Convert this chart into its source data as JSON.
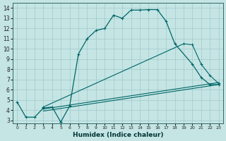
{
  "xlabel": "Humidex (Indice chaleur)",
  "bg_color": "#c5e5e5",
  "grid_color": "#a0c8c8",
  "line_color": "#006666",
  "xlim": [
    -0.5,
    23.5
  ],
  "ylim": [
    2.7,
    14.5
  ],
  "xticks": [
    0,
    1,
    2,
    3,
    4,
    5,
    6,
    7,
    8,
    9,
    10,
    11,
    12,
    13,
    14,
    15,
    16,
    17,
    18,
    19,
    20,
    21,
    22,
    23
  ],
  "yticks": [
    3,
    4,
    5,
    6,
    7,
    8,
    9,
    10,
    11,
    12,
    13,
    14
  ],
  "main_x": [
    0,
    1,
    2,
    3,
    4,
    5,
    5,
    6,
    7,
    8,
    9,
    10,
    11,
    12,
    13,
    14,
    15,
    16,
    17,
    18,
    20,
    21,
    22,
    23
  ],
  "main_y": [
    4.8,
    3.3,
    3.3,
    4.2,
    4.3,
    2.8,
    2.85,
    4.4,
    9.5,
    11.0,
    11.8,
    12.0,
    13.3,
    13.0,
    13.8,
    13.8,
    13.85,
    13.85,
    12.7,
    10.5,
    8.5,
    7.2,
    6.5,
    6.5
  ],
  "line2_x": [
    3,
    19,
    20,
    21,
    22,
    23
  ],
  "line2_y": [
    4.3,
    10.5,
    10.4,
    8.5,
    7.4,
    6.6
  ],
  "line3_x": [
    3,
    23
  ],
  "line3_y": [
    4.1,
    6.7
  ],
  "line4_x": [
    3,
    23
  ],
  "line4_y": [
    3.9,
    6.5
  ]
}
